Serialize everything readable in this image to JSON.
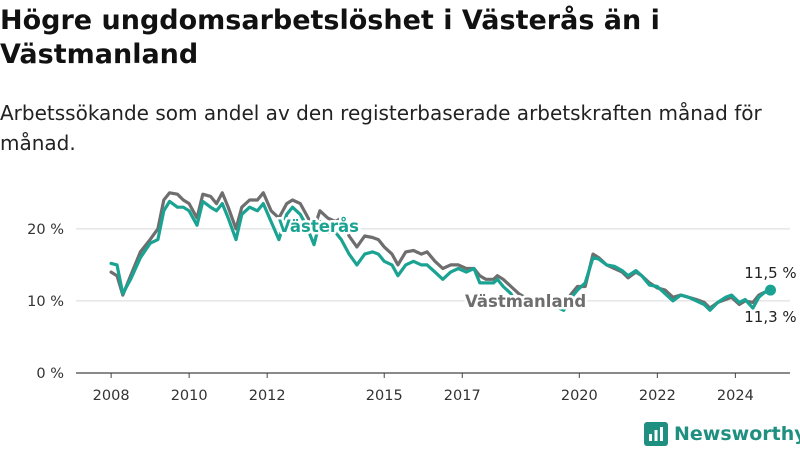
{
  "title": "Högre ungdomsarbetslöshet i Västerås än i Västmanland",
  "subtitle": "Arbetssökande som andel av den registerbaserade arbetskraften månad för månad.",
  "logo_text": "Newsworthy",
  "chart_data": {
    "type": "line",
    "y_tick_labels": [
      "0 %",
      "10 %",
      "20 %"
    ],
    "y_ticks": [
      0,
      10,
      20
    ],
    "ylim": [
      0,
      24
    ],
    "x_tick_labels": [
      "2008",
      "2010",
      "2012",
      "2015",
      "2017",
      "2020",
      "2022",
      "2024"
    ],
    "x_ticks": [
      2008,
      2010,
      2012,
      2015,
      2017,
      2020,
      2022,
      2024
    ],
    "xlim": [
      2007.1,
      2025.4
    ],
    "grid": "horizontal",
    "series": [
      {
        "name": "Västmanland",
        "color": "#6e6e6e",
        "end_label": "11,3 %",
        "points": [
          [
            2008.0,
            14.0
          ],
          [
            2008.15,
            13.5
          ],
          [
            2008.3,
            10.8
          ],
          [
            2008.5,
            13.5
          ],
          [
            2008.75,
            16.8
          ],
          [
            2009.0,
            18.5
          ],
          [
            2009.2,
            20.0
          ],
          [
            2009.35,
            24.0
          ],
          [
            2009.5,
            25.0
          ],
          [
            2009.7,
            24.8
          ],
          [
            2009.85,
            24.0
          ],
          [
            2010.0,
            23.5
          ],
          [
            2010.2,
            21.5
          ],
          [
            2010.35,
            24.8
          ],
          [
            2010.55,
            24.5
          ],
          [
            2010.7,
            23.5
          ],
          [
            2010.85,
            25.0
          ],
          [
            2011.0,
            23.0
          ],
          [
            2011.2,
            20.0
          ],
          [
            2011.35,
            23.0
          ],
          [
            2011.55,
            24.0
          ],
          [
            2011.75,
            24.0
          ],
          [
            2011.9,
            25.0
          ],
          [
            2012.1,
            22.5
          ],
          [
            2012.3,
            21.5
          ],
          [
            2012.5,
            23.5
          ],
          [
            2012.65,
            24.0
          ],
          [
            2012.85,
            23.5
          ],
          [
            2013.0,
            22.0
          ],
          [
            2013.2,
            20.0
          ],
          [
            2013.35,
            22.5
          ],
          [
            2013.55,
            21.5
          ],
          [
            2013.75,
            21.0
          ],
          [
            2013.9,
            21.5
          ],
          [
            2014.1,
            19.0
          ],
          [
            2014.3,
            17.5
          ],
          [
            2014.5,
            19.0
          ],
          [
            2014.7,
            18.8
          ],
          [
            2014.85,
            18.5
          ],
          [
            2015.0,
            17.5
          ],
          [
            2015.2,
            16.5
          ],
          [
            2015.35,
            15.0
          ],
          [
            2015.55,
            16.8
          ],
          [
            2015.75,
            17.0
          ],
          [
            2015.95,
            16.5
          ],
          [
            2016.1,
            16.8
          ],
          [
            2016.3,
            15.5
          ],
          [
            2016.5,
            14.5
          ],
          [
            2016.7,
            15.0
          ],
          [
            2016.9,
            15.0
          ],
          [
            2017.1,
            14.5
          ],
          [
            2017.3,
            14.5
          ],
          [
            2017.45,
            13.5
          ],
          [
            2017.6,
            13.0
          ],
          [
            2017.8,
            13.0
          ],
          [
            2017.9,
            13.5
          ],
          [
            2018.05,
            13.0
          ],
          [
            2018.25,
            12.0
          ],
          [
            2018.45,
            11.0
          ],
          [
            2018.6,
            10.5
          ],
          [
            2018.75,
            10.2
          ],
          [
            2018.9,
            10.5
          ],
          [
            2019.05,
            10.5
          ],
          [
            2019.2,
            10.0
          ],
          [
            2019.4,
            9.5
          ],
          [
            2019.6,
            9.5
          ],
          [
            2019.8,
            11.0
          ],
          [
            2019.95,
            12.0
          ],
          [
            2020.15,
            12.0
          ],
          [
            2020.35,
            16.5
          ],
          [
            2020.5,
            16.0
          ],
          [
            2020.7,
            15.0
          ],
          [
            2020.9,
            14.5
          ],
          [
            2021.1,
            14.0
          ],
          [
            2021.25,
            13.2
          ],
          [
            2021.45,
            14.0
          ],
          [
            2021.6,
            13.5
          ],
          [
            2021.8,
            12.5
          ],
          [
            2022.0,
            11.8
          ],
          [
            2022.2,
            11.5
          ],
          [
            2022.4,
            10.5
          ],
          [
            2022.6,
            10.8
          ],
          [
            2022.8,
            10.5
          ],
          [
            2023.0,
            10.2
          ],
          [
            2023.2,
            9.8
          ],
          [
            2023.35,
            9.0
          ],
          [
            2023.55,
            9.8
          ],
          [
            2023.75,
            10.2
          ],
          [
            2023.9,
            10.5
          ],
          [
            2024.1,
            9.5
          ],
          [
            2024.25,
            10.0
          ],
          [
            2024.45,
            9.8
          ],
          [
            2024.6,
            10.8
          ],
          [
            2024.75,
            11.2
          ],
          [
            2024.9,
            11.3
          ]
        ]
      },
      {
        "name": "Västerås",
        "color": "#1aa392",
        "end_label": "11,5 %",
        "points": [
          [
            2008.0,
            15.2
          ],
          [
            2008.15,
            15.0
          ],
          [
            2008.3,
            11.0
          ],
          [
            2008.5,
            13.0
          ],
          [
            2008.75,
            16.0
          ],
          [
            2009.0,
            18.0
          ],
          [
            2009.2,
            18.5
          ],
          [
            2009.35,
            22.5
          ],
          [
            2009.5,
            23.8
          ],
          [
            2009.7,
            23.0
          ],
          [
            2009.85,
            23.0
          ],
          [
            2010.0,
            22.5
          ],
          [
            2010.2,
            20.5
          ],
          [
            2010.35,
            23.8
          ],
          [
            2010.55,
            23.0
          ],
          [
            2010.7,
            22.5
          ],
          [
            2010.85,
            23.5
          ],
          [
            2011.0,
            21.5
          ],
          [
            2011.2,
            18.5
          ],
          [
            2011.35,
            22.0
          ],
          [
            2011.55,
            23.0
          ],
          [
            2011.75,
            22.5
          ],
          [
            2011.9,
            23.5
          ],
          [
            2012.1,
            21.0
          ],
          [
            2012.3,
            18.5
          ],
          [
            2012.5,
            22.0
          ],
          [
            2012.65,
            23.0
          ],
          [
            2012.85,
            22.0
          ],
          [
            2013.0,
            20.5
          ],
          [
            2013.2,
            17.8
          ],
          [
            2013.35,
            21.0
          ],
          [
            2013.55,
            19.5
          ],
          [
            2013.75,
            19.5
          ],
          [
            2013.9,
            18.5
          ],
          [
            2014.1,
            16.5
          ],
          [
            2014.3,
            15.0
          ],
          [
            2014.5,
            16.5
          ],
          [
            2014.7,
            16.8
          ],
          [
            2014.85,
            16.5
          ],
          [
            2015.0,
            15.5
          ],
          [
            2015.2,
            15.0
          ],
          [
            2015.35,
            13.5
          ],
          [
            2015.55,
            15.0
          ],
          [
            2015.75,
            15.5
          ],
          [
            2015.95,
            15.0
          ],
          [
            2016.1,
            15.0
          ],
          [
            2016.3,
            14.0
          ],
          [
            2016.5,
            13.0
          ],
          [
            2016.7,
            14.0
          ],
          [
            2016.9,
            14.5
          ],
          [
            2017.1,
            14.0
          ],
          [
            2017.3,
            14.5
          ],
          [
            2017.45,
            12.5
          ],
          [
            2017.6,
            12.5
          ],
          [
            2017.8,
            12.5
          ],
          [
            2017.9,
            13.0
          ],
          [
            2018.05,
            12.0
          ],
          [
            2018.25,
            11.0
          ],
          [
            2018.45,
            9.0
          ],
          [
            2018.6,
            9.5
          ],
          [
            2018.75,
            10.0
          ],
          [
            2018.9,
            10.0
          ],
          [
            2019.05,
            10.0
          ],
          [
            2019.2,
            9.5
          ],
          [
            2019.4,
            9.2
          ],
          [
            2019.6,
            8.7
          ],
          [
            2019.8,
            10.5
          ],
          [
            2019.95,
            11.5
          ],
          [
            2020.15,
            12.5
          ],
          [
            2020.35,
            16.0
          ],
          [
            2020.5,
            15.8
          ],
          [
            2020.7,
            15.0
          ],
          [
            2020.9,
            14.8
          ],
          [
            2021.1,
            14.2
          ],
          [
            2021.25,
            13.5
          ],
          [
            2021.45,
            14.2
          ],
          [
            2021.6,
            13.5
          ],
          [
            2021.8,
            12.2
          ],
          [
            2022.0,
            12.0
          ],
          [
            2022.2,
            11.0
          ],
          [
            2022.4,
            10.0
          ],
          [
            2022.6,
            10.8
          ],
          [
            2022.8,
            10.5
          ],
          [
            2023.0,
            10.0
          ],
          [
            2023.2,
            9.5
          ],
          [
            2023.35,
            8.7
          ],
          [
            2023.55,
            9.8
          ],
          [
            2023.75,
            10.5
          ],
          [
            2023.9,
            10.8
          ],
          [
            2024.1,
            9.8
          ],
          [
            2024.25,
            10.2
          ],
          [
            2024.45,
            9.0
          ],
          [
            2024.6,
            10.5
          ],
          [
            2024.75,
            11.2
          ],
          [
            2024.9,
            11.5
          ]
        ]
      }
    ]
  }
}
